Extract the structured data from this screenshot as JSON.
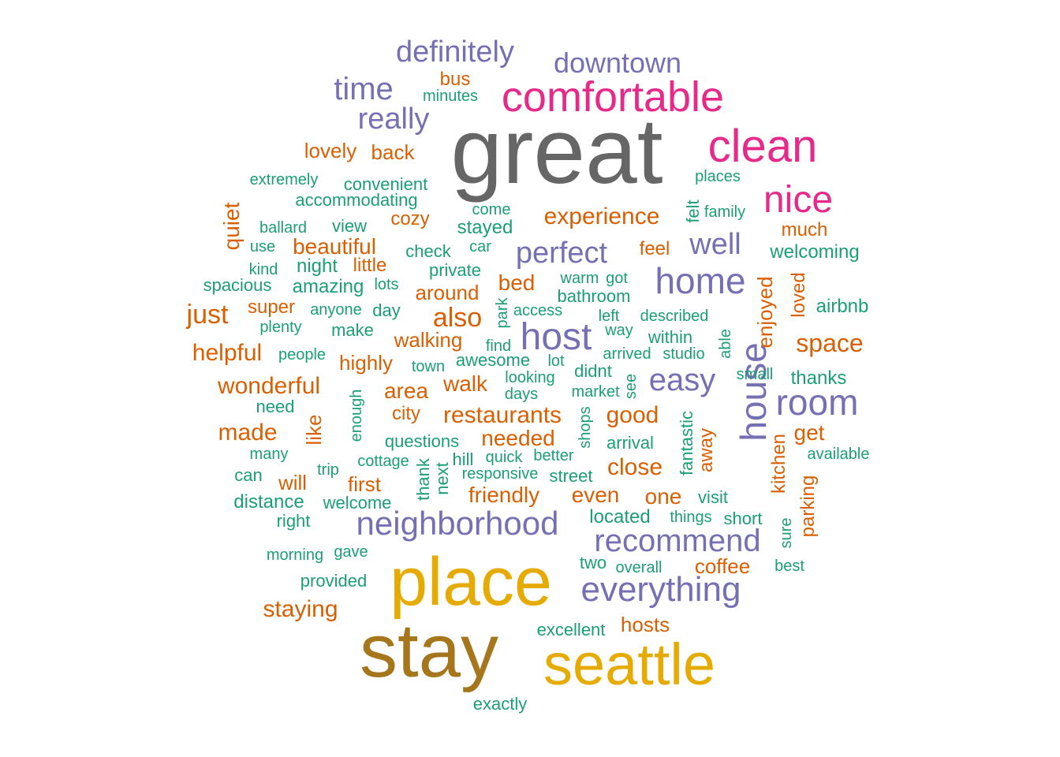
{
  "palette": {
    "c1": "#1b9e77",
    "c2": "#d95f02",
    "c3": "#7570b3",
    "c4": "#e7298a",
    "c5": "#e6ab02",
    "c6": "#a6761d",
    "c7": "#666666"
  },
  "words": [
    {
      "text": "great",
      "color": "c7"
    },
    {
      "text": "stay",
      "color": "c6"
    },
    {
      "text": "place",
      "color": "c5"
    },
    {
      "text": "seattle",
      "color": "c5"
    },
    {
      "text": "comfortable",
      "color": "c4"
    },
    {
      "text": "clean",
      "color": "c4"
    },
    {
      "text": "nice",
      "color": "c4"
    },
    {
      "text": "home",
      "color": "c3"
    },
    {
      "text": "host",
      "color": "c3"
    },
    {
      "text": "house",
      "color": "c3"
    },
    {
      "text": "room",
      "color": "c3"
    },
    {
      "text": "neighborhood",
      "color": "c3"
    },
    {
      "text": "everything",
      "color": "c3"
    },
    {
      "text": "recommend",
      "color": "c3"
    },
    {
      "text": "easy",
      "color": "c3"
    },
    {
      "text": "definitely",
      "color": "c3"
    },
    {
      "text": "downtown",
      "color": "c3"
    },
    {
      "text": "time",
      "color": "c3"
    },
    {
      "text": "really",
      "color": "c3"
    },
    {
      "text": "perfect",
      "color": "c3"
    },
    {
      "text": "well",
      "color": "c3"
    },
    {
      "text": "experience",
      "color": "c2"
    },
    {
      "text": "also",
      "color": "c2"
    },
    {
      "text": "space",
      "color": "c2"
    },
    {
      "text": "just",
      "color": "c2"
    },
    {
      "text": "wonderful",
      "color": "c2"
    },
    {
      "text": "helpful",
      "color": "c2"
    },
    {
      "text": "made",
      "color": "c2"
    },
    {
      "text": "quiet",
      "color": "c2"
    },
    {
      "text": "restaurants",
      "color": "c2"
    },
    {
      "text": "good",
      "color": "c2"
    },
    {
      "text": "close",
      "color": "c2"
    },
    {
      "text": "staying",
      "color": "c2"
    },
    {
      "text": "needed",
      "color": "c2"
    },
    {
      "text": "friendly",
      "color": "c2"
    },
    {
      "text": "area",
      "color": "c2"
    },
    {
      "text": "walk",
      "color": "c2"
    },
    {
      "text": "walking",
      "color": "c2"
    },
    {
      "text": "beautiful",
      "color": "c2"
    },
    {
      "text": "bed",
      "color": "c2"
    },
    {
      "text": "enjoyed",
      "color": "c2"
    },
    {
      "text": "get",
      "color": "c2"
    },
    {
      "text": "even",
      "color": "c2"
    },
    {
      "text": "one",
      "color": "c2"
    },
    {
      "text": "coffee",
      "color": "c2"
    },
    {
      "text": "hosts",
      "color": "c2"
    },
    {
      "text": "lovely",
      "color": "c2"
    },
    {
      "text": "back",
      "color": "c2"
    },
    {
      "text": "bus",
      "color": "c2"
    },
    {
      "text": "cozy",
      "color": "c2"
    },
    {
      "text": "feel",
      "color": "c2"
    },
    {
      "text": "much",
      "color": "c2"
    },
    {
      "text": "around",
      "color": "c2"
    },
    {
      "text": "super",
      "color": "c2"
    },
    {
      "text": "highly",
      "color": "c2"
    },
    {
      "text": "little",
      "color": "c2"
    },
    {
      "text": "city",
      "color": "c2"
    },
    {
      "text": "like",
      "color": "c2"
    },
    {
      "text": "will",
      "color": "c2"
    },
    {
      "text": "first",
      "color": "c2"
    },
    {
      "text": "away",
      "color": "c2"
    },
    {
      "text": "kitchen",
      "color": "c2"
    },
    {
      "text": "parking",
      "color": "c2"
    },
    {
      "text": "loved",
      "color": "c2"
    },
    {
      "text": "minutes",
      "color": "c1"
    },
    {
      "text": "extremely",
      "color": "c1"
    },
    {
      "text": "convenient",
      "color": "c1"
    },
    {
      "text": "accommodating",
      "color": "c1"
    },
    {
      "text": "places",
      "color": "c1"
    },
    {
      "text": "ballard",
      "color": "c1"
    },
    {
      "text": "view",
      "color": "c1"
    },
    {
      "text": "come",
      "color": "c1"
    },
    {
      "text": "stayed",
      "color": "c1"
    },
    {
      "text": "felt",
      "color": "c1"
    },
    {
      "text": "family",
      "color": "c1"
    },
    {
      "text": "use",
      "color": "c1"
    },
    {
      "text": "check",
      "color": "c1"
    },
    {
      "text": "car",
      "color": "c1"
    },
    {
      "text": "welcoming",
      "color": "c1"
    },
    {
      "text": "kind",
      "color": "c1"
    },
    {
      "text": "night",
      "color": "c1"
    },
    {
      "text": "private",
      "color": "c1"
    },
    {
      "text": "spacious",
      "color": "c1"
    },
    {
      "text": "amazing",
      "color": "c1"
    },
    {
      "text": "lots",
      "color": "c1"
    },
    {
      "text": "warm",
      "color": "c1"
    },
    {
      "text": "got",
      "color": "c1"
    },
    {
      "text": "bathroom",
      "color": "c1"
    },
    {
      "text": "airbnb",
      "color": "c1"
    },
    {
      "text": "anyone",
      "color": "c1"
    },
    {
      "text": "day",
      "color": "c1"
    },
    {
      "text": "park",
      "color": "c1"
    },
    {
      "text": "access",
      "color": "c1"
    },
    {
      "text": "left",
      "color": "c1"
    },
    {
      "text": "described",
      "color": "c1"
    },
    {
      "text": "plenty",
      "color": "c1"
    },
    {
      "text": "make",
      "color": "c1"
    },
    {
      "text": "way",
      "color": "c1"
    },
    {
      "text": "within",
      "color": "c1"
    },
    {
      "text": "find",
      "color": "c1"
    },
    {
      "text": "arrived",
      "color": "c1"
    },
    {
      "text": "studio",
      "color": "c1"
    },
    {
      "text": "able",
      "color": "c1"
    },
    {
      "text": "people",
      "color": "c1"
    },
    {
      "text": "awesome",
      "color": "c1"
    },
    {
      "text": "lot",
      "color": "c1"
    },
    {
      "text": "town",
      "color": "c1"
    },
    {
      "text": "didnt",
      "color": "c1"
    },
    {
      "text": "small",
      "color": "c1"
    },
    {
      "text": "looking",
      "color": "c1"
    },
    {
      "text": "see",
      "color": "c1"
    },
    {
      "text": "thanks",
      "color": "c1"
    },
    {
      "text": "days",
      "color": "c1"
    },
    {
      "text": "market",
      "color": "c1"
    },
    {
      "text": "need",
      "color": "c1"
    },
    {
      "text": "enough",
      "color": "c1"
    },
    {
      "text": "shops",
      "color": "c1"
    },
    {
      "text": "fantastic",
      "color": "c1"
    },
    {
      "text": "questions",
      "color": "c1"
    },
    {
      "text": "arrival",
      "color": "c1"
    },
    {
      "text": "many",
      "color": "c1"
    },
    {
      "text": "cottage",
      "color": "c1"
    },
    {
      "text": "hill",
      "color": "c1"
    },
    {
      "text": "quick",
      "color": "c1"
    },
    {
      "text": "better",
      "color": "c1"
    },
    {
      "text": "available",
      "color": "c1"
    },
    {
      "text": "trip",
      "color": "c1"
    },
    {
      "text": "can",
      "color": "c1"
    },
    {
      "text": "thank",
      "color": "c1"
    },
    {
      "text": "next",
      "color": "c1"
    },
    {
      "text": "responsive",
      "color": "c1"
    },
    {
      "text": "street",
      "color": "c1"
    },
    {
      "text": "distance",
      "color": "c1"
    },
    {
      "text": "welcome",
      "color": "c1"
    },
    {
      "text": "visit",
      "color": "c1"
    },
    {
      "text": "right",
      "color": "c1"
    },
    {
      "text": "located",
      "color": "c1"
    },
    {
      "text": "things",
      "color": "c1"
    },
    {
      "text": "short",
      "color": "c1"
    },
    {
      "text": "sure",
      "color": "c1"
    },
    {
      "text": "morning",
      "color": "c1"
    },
    {
      "text": "gave",
      "color": "c1"
    },
    {
      "text": "two",
      "color": "c1"
    },
    {
      "text": "overall",
      "color": "c1"
    },
    {
      "text": "best",
      "color": "c1"
    },
    {
      "text": "provided",
      "color": "c1"
    },
    {
      "text": "excellent",
      "color": "c1"
    },
    {
      "text": "exactly",
      "color": "c1"
    }
  ]
}
